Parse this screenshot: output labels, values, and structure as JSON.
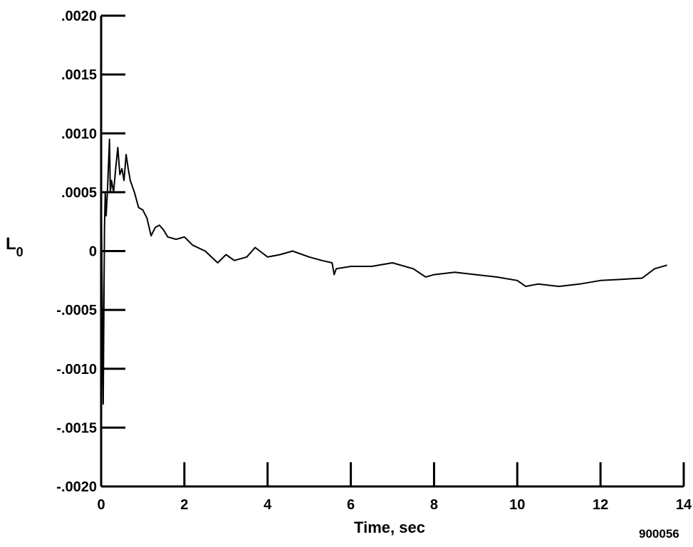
{
  "chart_data": {
    "type": "line",
    "title": "",
    "xlabel": "Time, sec",
    "ylabel": {
      "main": "L",
      "sub": "0"
    },
    "xlim": [
      0,
      14
    ],
    "ylim": [
      -0.002,
      0.002
    ],
    "x_ticks": [
      0,
      2,
      4,
      6,
      8,
      10,
      12,
      14
    ],
    "x_tick_labels": [
      "0",
      "2",
      "4",
      "6",
      "8",
      "10",
      "12",
      "14"
    ],
    "y_ticks": [
      0.002,
      0.0015,
      0.001,
      0.0005,
      0,
      -0.0005,
      -0.001,
      -0.0015,
      -0.002
    ],
    "y_tick_labels": [
      ".0020",
      ".0015",
      ".0010",
      ".0005",
      "0",
      "-.0005",
      "-.0010",
      "-.0015",
      "-.0020"
    ],
    "grid": false,
    "series": [
      {
        "color": "#000000",
        "x": [
          0.0,
          0.05,
          0.08,
          0.1,
          0.12,
          0.15,
          0.2,
          0.22,
          0.25,
          0.3,
          0.35,
          0.4,
          0.45,
          0.5,
          0.55,
          0.6,
          0.65,
          0.7,
          0.8,
          0.9,
          1.0,
          1.1,
          1.2,
          1.3,
          1.4,
          1.5,
          1.6,
          1.8,
          2.0,
          2.2,
          2.5,
          2.8,
          3.0,
          3.2,
          3.5,
          3.7,
          4.0,
          4.3,
          4.6,
          5.0,
          5.3,
          5.55,
          5.6,
          5.65,
          6.0,
          6.5,
          7.0,
          7.5,
          7.8,
          8.0,
          8.5,
          9.0,
          9.5,
          10.0,
          10.2,
          10.5,
          11.0,
          11.5,
          12.0,
          12.5,
          13.0,
          13.3,
          13.6
        ],
        "y": [
          0.0006,
          -0.0013,
          0.0002,
          0.0005,
          0.0003,
          0.0005,
          0.00095,
          0.0005,
          0.0006,
          0.0005,
          0.0007,
          0.00088,
          0.00065,
          0.0007,
          0.0006,
          0.00082,
          0.0007,
          0.0006,
          0.0005,
          0.00037,
          0.00035,
          0.00028,
          0.00013,
          0.0002,
          0.00022,
          0.00018,
          0.00012,
          0.0001,
          0.00012,
          5e-05,
          0.0,
          -0.0001,
          -3e-05,
          -8e-05,
          -5e-05,
          3e-05,
          -5e-05,
          -3e-05,
          0.0,
          -5e-05,
          -8e-05,
          -0.0001,
          -0.0002,
          -0.00015,
          -0.00013,
          -0.00013,
          -0.0001,
          -0.00015,
          -0.00022,
          -0.0002,
          -0.00018,
          -0.0002,
          -0.00022,
          -0.00025,
          -0.0003,
          -0.00028,
          -0.0003,
          -0.00028,
          -0.00025,
          -0.00024,
          -0.00023,
          -0.00015,
          -0.00012
        ]
      }
    ]
  },
  "figure_id": "900056"
}
